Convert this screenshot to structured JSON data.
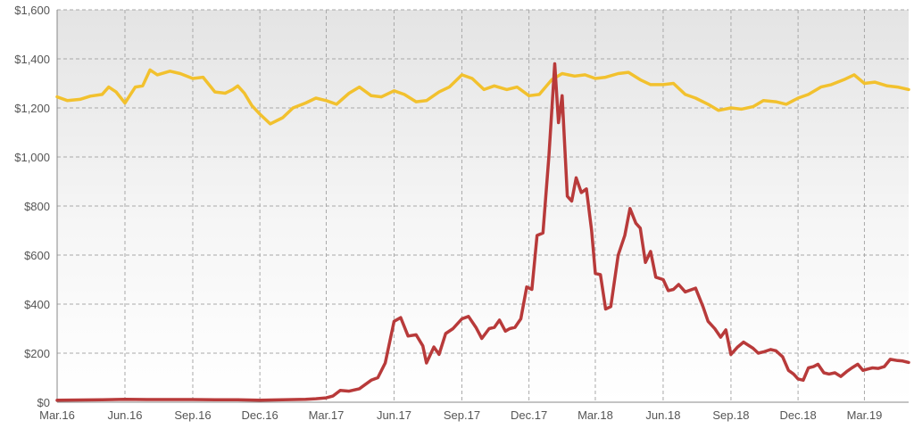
{
  "chart_data": {
    "type": "line",
    "title": "",
    "xlabel": "",
    "ylabel": "",
    "ylim": [
      0,
      1600
    ],
    "xlim": [
      "2016-03-01",
      "2019-04-30"
    ],
    "grid": true,
    "legend": "none",
    "x_ticks": [
      {
        "date": "2016-03-01",
        "label": "Mar.16"
      },
      {
        "date": "2016-06-01",
        "label": "Jun.16"
      },
      {
        "date": "2016-09-01",
        "label": "Sep.16"
      },
      {
        "date": "2016-12-01",
        "label": "Dec.16"
      },
      {
        "date": "2017-03-01",
        "label": "Mar.17"
      },
      {
        "date": "2017-06-01",
        "label": "Jun.17"
      },
      {
        "date": "2017-09-01",
        "label": "Sep.17"
      },
      {
        "date": "2017-12-01",
        "label": "Dec.17"
      },
      {
        "date": "2018-03-01",
        "label": "Mar.18"
      },
      {
        "date": "2018-06-01",
        "label": "Jun.18"
      },
      {
        "date": "2018-09-01",
        "label": "Sep.18"
      },
      {
        "date": "2018-12-01",
        "label": "Dec.18"
      },
      {
        "date": "2019-03-01",
        "label": "Mar.19"
      }
    ],
    "y_ticks": [
      {
        "value": 0,
        "label": "$0"
      },
      {
        "value": 200,
        "label": "$200"
      },
      {
        "value": 400,
        "label": "$400"
      },
      {
        "value": 600,
        "label": "$600"
      },
      {
        "value": 800,
        "label": "$800"
      },
      {
        "value": 1000,
        "label": "$1,000"
      },
      {
        "value": 1200,
        "label": "$1,200"
      },
      {
        "value": 1400,
        "label": "$1,400"
      },
      {
        "value": 1600,
        "label": "$1,600"
      }
    ],
    "series": [
      {
        "color": "#f2c12e",
        "points": [
          [
            "2016-03-01",
            1245
          ],
          [
            "2016-03-15",
            1230
          ],
          [
            "2016-04-01",
            1235
          ],
          [
            "2016-04-15",
            1248
          ],
          [
            "2016-05-01",
            1255
          ],
          [
            "2016-05-10",
            1285
          ],
          [
            "2016-05-20",
            1265
          ],
          [
            "2016-06-01",
            1220
          ],
          [
            "2016-06-15",
            1285
          ],
          [
            "2016-06-25",
            1290
          ],
          [
            "2016-07-05",
            1355
          ],
          [
            "2016-07-15",
            1335
          ],
          [
            "2016-08-01",
            1350
          ],
          [
            "2016-08-15",
            1340
          ],
          [
            "2016-09-01",
            1320
          ],
          [
            "2016-09-15",
            1325
          ],
          [
            "2016-10-01",
            1265
          ],
          [
            "2016-10-15",
            1260
          ],
          [
            "2016-10-25",
            1275
          ],
          [
            "2016-11-01",
            1290
          ],
          [
            "2016-11-10",
            1260
          ],
          [
            "2016-11-20",
            1210
          ],
          [
            "2016-12-01",
            1175
          ],
          [
            "2016-12-15",
            1135
          ],
          [
            "2017-01-01",
            1160
          ],
          [
            "2017-01-15",
            1200
          ],
          [
            "2017-02-01",
            1220
          ],
          [
            "2017-02-15",
            1240
          ],
          [
            "2017-03-01",
            1230
          ],
          [
            "2017-03-15",
            1215
          ],
          [
            "2017-04-01",
            1260
          ],
          [
            "2017-04-15",
            1285
          ],
          [
            "2017-05-01",
            1250
          ],
          [
            "2017-05-15",
            1245
          ],
          [
            "2017-06-01",
            1270
          ],
          [
            "2017-06-15",
            1255
          ],
          [
            "2017-07-01",
            1225
          ],
          [
            "2017-07-15",
            1230
          ],
          [
            "2017-08-01",
            1265
          ],
          [
            "2017-08-15",
            1285
          ],
          [
            "2017-09-01",
            1335
          ],
          [
            "2017-09-15",
            1320
          ],
          [
            "2017-10-01",
            1275
          ],
          [
            "2017-10-15",
            1290
          ],
          [
            "2017-11-01",
            1275
          ],
          [
            "2017-11-15",
            1285
          ],
          [
            "2017-12-01",
            1250
          ],
          [
            "2017-12-15",
            1255
          ],
          [
            "2018-01-01",
            1315
          ],
          [
            "2018-01-15",
            1340
          ],
          [
            "2018-02-01",
            1330
          ],
          [
            "2018-02-15",
            1335
          ],
          [
            "2018-03-01",
            1320
          ],
          [
            "2018-03-15",
            1325
          ],
          [
            "2018-04-01",
            1340
          ],
          [
            "2018-04-15",
            1345
          ],
          [
            "2018-05-01",
            1315
          ],
          [
            "2018-05-15",
            1295
          ],
          [
            "2018-06-01",
            1295
          ],
          [
            "2018-06-15",
            1300
          ],
          [
            "2018-07-01",
            1255
          ],
          [
            "2018-07-15",
            1240
          ],
          [
            "2018-08-01",
            1215
          ],
          [
            "2018-08-15",
            1190
          ],
          [
            "2018-09-01",
            1200
          ],
          [
            "2018-09-15",
            1195
          ],
          [
            "2018-10-01",
            1205
          ],
          [
            "2018-10-15",
            1230
          ],
          [
            "2018-11-01",
            1225
          ],
          [
            "2018-11-15",
            1215
          ],
          [
            "2018-12-01",
            1240
          ],
          [
            "2018-12-15",
            1255
          ],
          [
            "2019-01-01",
            1285
          ],
          [
            "2019-01-15",
            1295
          ],
          [
            "2019-02-01",
            1315
          ],
          [
            "2019-02-15",
            1335
          ],
          [
            "2019-03-01",
            1300
          ],
          [
            "2019-03-15",
            1305
          ],
          [
            "2019-04-01",
            1290
          ],
          [
            "2019-04-15",
            1285
          ],
          [
            "2019-04-30",
            1275
          ]
        ]
      },
      {
        "color": "#b83a3a",
        "points": [
          [
            "2016-03-01",
            8
          ],
          [
            "2016-04-01",
            9
          ],
          [
            "2016-05-01",
            10
          ],
          [
            "2016-06-01",
            12
          ],
          [
            "2016-07-01",
            11
          ],
          [
            "2016-08-01",
            11
          ],
          [
            "2016-09-01",
            11
          ],
          [
            "2016-10-01",
            10
          ],
          [
            "2016-11-01",
            10
          ],
          [
            "2016-12-01",
            8
          ],
          [
            "2017-01-01",
            10
          ],
          [
            "2017-02-01",
            12
          ],
          [
            "2017-02-15",
            14
          ],
          [
            "2017-03-01",
            18
          ],
          [
            "2017-03-10",
            25
          ],
          [
            "2017-03-20",
            48
          ],
          [
            "2017-04-01",
            45
          ],
          [
            "2017-04-15",
            55
          ],
          [
            "2017-05-01",
            90
          ],
          [
            "2017-05-10",
            100
          ],
          [
            "2017-05-20",
            160
          ],
          [
            "2017-06-01",
            330
          ],
          [
            "2017-06-10",
            345
          ],
          [
            "2017-06-20",
            270
          ],
          [
            "2017-07-01",
            275
          ],
          [
            "2017-07-10",
            230
          ],
          [
            "2017-07-15",
            160
          ],
          [
            "2017-07-25",
            225
          ],
          [
            "2017-08-01",
            195
          ],
          [
            "2017-08-10",
            280
          ],
          [
            "2017-08-20",
            300
          ],
          [
            "2017-09-01",
            340
          ],
          [
            "2017-09-10",
            350
          ],
          [
            "2017-09-20",
            305
          ],
          [
            "2017-09-28",
            260
          ],
          [
            "2017-10-08",
            300
          ],
          [
            "2017-10-15",
            305
          ],
          [
            "2017-10-22",
            335
          ],
          [
            "2017-10-30",
            290
          ],
          [
            "2017-11-05",
            300
          ],
          [
            "2017-11-12",
            305
          ],
          [
            "2017-11-20",
            340
          ],
          [
            "2017-11-28",
            470
          ],
          [
            "2017-12-05",
            460
          ],
          [
            "2017-12-12",
            680
          ],
          [
            "2017-12-20",
            690
          ],
          [
            "2017-12-28",
            1000
          ],
          [
            "2018-01-05",
            1380
          ],
          [
            "2018-01-10",
            1140
          ],
          [
            "2018-01-15",
            1250
          ],
          [
            "2018-01-22",
            840
          ],
          [
            "2018-01-28",
            820
          ],
          [
            "2018-02-03",
            915
          ],
          [
            "2018-02-10",
            855
          ],
          [
            "2018-02-17",
            870
          ],
          [
            "2018-02-24",
            700
          ],
          [
            "2018-03-01",
            525
          ],
          [
            "2018-03-08",
            520
          ],
          [
            "2018-03-15",
            380
          ],
          [
            "2018-03-22",
            390
          ],
          [
            "2018-04-01",
            600
          ],
          [
            "2018-04-10",
            680
          ],
          [
            "2018-04-17",
            790
          ],
          [
            "2018-04-25",
            730
          ],
          [
            "2018-05-01",
            710
          ],
          [
            "2018-05-08",
            570
          ],
          [
            "2018-05-15",
            615
          ],
          [
            "2018-05-22",
            510
          ],
          [
            "2018-06-01",
            500
          ],
          [
            "2018-06-08",
            455
          ],
          [
            "2018-06-15",
            460
          ],
          [
            "2018-06-22",
            480
          ],
          [
            "2018-07-01",
            450
          ],
          [
            "2018-07-15",
            465
          ],
          [
            "2018-07-25",
            390
          ],
          [
            "2018-08-01",
            330
          ],
          [
            "2018-08-10",
            300
          ],
          [
            "2018-08-18",
            265
          ],
          [
            "2018-08-25",
            295
          ],
          [
            "2018-09-01",
            195
          ],
          [
            "2018-09-10",
            225
          ],
          [
            "2018-09-18",
            245
          ],
          [
            "2018-10-01",
            220
          ],
          [
            "2018-10-08",
            200
          ],
          [
            "2018-10-15",
            205
          ],
          [
            "2018-10-25",
            215
          ],
          [
            "2018-11-01",
            210
          ],
          [
            "2018-11-10",
            185
          ],
          [
            "2018-11-18",
            130
          ],
          [
            "2018-11-25",
            115
          ],
          [
            "2018-12-01",
            95
          ],
          [
            "2018-12-08",
            90
          ],
          [
            "2018-12-15",
            140
          ],
          [
            "2018-12-22",
            145
          ],
          [
            "2018-12-28",
            155
          ],
          [
            "2019-01-05",
            120
          ],
          [
            "2019-01-12",
            115
          ],
          [
            "2019-01-20",
            120
          ],
          [
            "2019-01-28",
            105
          ],
          [
            "2019-02-05",
            125
          ],
          [
            "2019-02-12",
            140
          ],
          [
            "2019-02-20",
            155
          ],
          [
            "2019-02-27",
            130
          ],
          [
            "2019-03-05",
            135
          ],
          [
            "2019-03-12",
            140
          ],
          [
            "2019-03-20",
            138
          ],
          [
            "2019-03-28",
            145
          ],
          [
            "2019-04-05",
            175
          ],
          [
            "2019-04-15",
            170
          ],
          [
            "2019-04-22",
            168
          ],
          [
            "2019-04-30",
            162
          ]
        ]
      }
    ]
  }
}
